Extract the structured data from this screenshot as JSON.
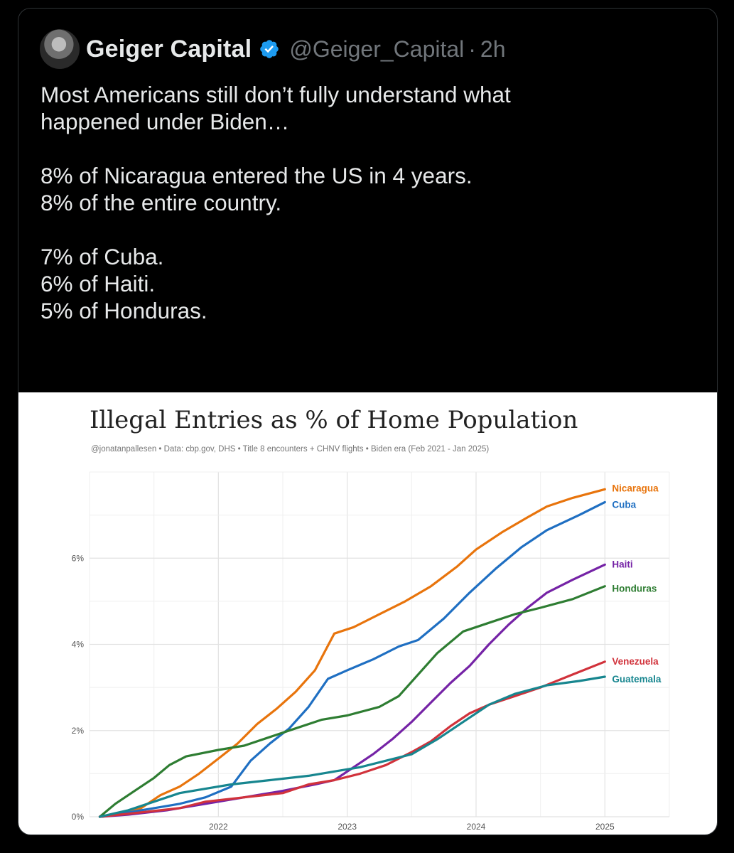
{
  "tweet": {
    "author_name": "Geiger Capital",
    "handle": "@Geiger_Capital",
    "separator": "·",
    "time": "2h",
    "verified_icon": "verified-badge-icon",
    "avatar_icon": "avatar-photo",
    "lines": [
      "Most Americans still don’t fully understand what",
      "happened under Biden…",
      "",
      "8% of Nicaragua entered the US in 4 years.",
      "8% of the entire country.",
      "",
      "7% of Cuba.",
      "6% of Haiti.",
      "5% of Honduras."
    ]
  },
  "chart_data": {
    "type": "line",
    "title": "Illegal Entries as % of Home Population",
    "subtitle": "@jonatanpallesen  •  Data: cbp.gov, DHS  •  Title 8 encounters + CHNV flights  •  Biden era (Feb 2021 - Jan 2025)",
    "xlabel": "",
    "ylabel": "",
    "xlim": [
      2021.0,
      2025.5
    ],
    "ylim": [
      0,
      8
    ],
    "x_ticks": [
      2022,
      2023,
      2024,
      2025
    ],
    "x_tick_labels": [
      "2022",
      "2023",
      "2024",
      "2025"
    ],
    "y_ticks": [
      0,
      2,
      4,
      6
    ],
    "y_tick_labels": [
      "0%",
      "2%",
      "4%",
      "6%"
    ],
    "grid": true,
    "legend": "end-of-line labels",
    "series": [
      {
        "name": "Nicaragua",
        "color": "#e8740c",
        "points": [
          [
            2021.08,
            0.0
          ],
          [
            2021.25,
            0.05
          ],
          [
            2021.4,
            0.2
          ],
          [
            2021.55,
            0.5
          ],
          [
            2021.7,
            0.7
          ],
          [
            2021.85,
            1.0
          ],
          [
            2022.0,
            1.35
          ],
          [
            2022.15,
            1.7
          ],
          [
            2022.3,
            2.15
          ],
          [
            2022.45,
            2.5
          ],
          [
            2022.6,
            2.9
          ],
          [
            2022.75,
            3.4
          ],
          [
            2022.9,
            4.25
          ],
          [
            2023.05,
            4.4
          ],
          [
            2023.25,
            4.7
          ],
          [
            2023.45,
            5.0
          ],
          [
            2023.65,
            5.35
          ],
          [
            2023.85,
            5.8
          ],
          [
            2024.0,
            6.2
          ],
          [
            2024.2,
            6.6
          ],
          [
            2024.4,
            6.95
          ],
          [
            2024.55,
            7.2
          ],
          [
            2024.75,
            7.4
          ],
          [
            2025.0,
            7.6
          ]
        ]
      },
      {
        "name": "Cuba",
        "color": "#1f6fc2",
        "points": [
          [
            2021.08,
            0.0
          ],
          [
            2021.3,
            0.1
          ],
          [
            2021.5,
            0.2
          ],
          [
            2021.7,
            0.3
          ],
          [
            2021.9,
            0.45
          ],
          [
            2022.1,
            0.7
          ],
          [
            2022.25,
            1.3
          ],
          [
            2022.4,
            1.7
          ],
          [
            2022.55,
            2.05
          ],
          [
            2022.7,
            2.55
          ],
          [
            2022.85,
            3.2
          ],
          [
            2023.0,
            3.4
          ],
          [
            2023.2,
            3.65
          ],
          [
            2023.4,
            3.95
          ],
          [
            2023.55,
            4.1
          ],
          [
            2023.75,
            4.6
          ],
          [
            2023.95,
            5.2
          ],
          [
            2024.15,
            5.75
          ],
          [
            2024.35,
            6.25
          ],
          [
            2024.55,
            6.65
          ],
          [
            2024.8,
            7.0
          ],
          [
            2025.0,
            7.3
          ]
        ]
      },
      {
        "name": "Haiti",
        "color": "#7523a6",
        "points": [
          [
            2021.08,
            0.0
          ],
          [
            2021.3,
            0.05
          ],
          [
            2021.6,
            0.15
          ],
          [
            2021.9,
            0.3
          ],
          [
            2022.2,
            0.45
          ],
          [
            2022.5,
            0.6
          ],
          [
            2022.75,
            0.75
          ],
          [
            2022.9,
            0.85
          ],
          [
            2023.05,
            1.15
          ],
          [
            2023.2,
            1.45
          ],
          [
            2023.35,
            1.8
          ],
          [
            2023.5,
            2.2
          ],
          [
            2023.65,
            2.65
          ],
          [
            2023.8,
            3.1
          ],
          [
            2023.95,
            3.5
          ],
          [
            2024.1,
            4.0
          ],
          [
            2024.25,
            4.45
          ],
          [
            2024.4,
            4.85
          ],
          [
            2024.55,
            5.2
          ],
          [
            2024.75,
            5.5
          ],
          [
            2025.0,
            5.85
          ]
        ]
      },
      {
        "name": "Honduras",
        "color": "#2e7d32",
        "points": [
          [
            2021.08,
            0.0
          ],
          [
            2021.2,
            0.3
          ],
          [
            2021.35,
            0.6
          ],
          [
            2021.5,
            0.9
          ],
          [
            2021.62,
            1.2
          ],
          [
            2021.75,
            1.4
          ],
          [
            2022.0,
            1.55
          ],
          [
            2022.2,
            1.65
          ],
          [
            2022.4,
            1.85
          ],
          [
            2022.6,
            2.05
          ],
          [
            2022.8,
            2.25
          ],
          [
            2023.0,
            2.35
          ],
          [
            2023.25,
            2.55
          ],
          [
            2023.4,
            2.8
          ],
          [
            2023.55,
            3.3
          ],
          [
            2023.7,
            3.8
          ],
          [
            2023.9,
            4.3
          ],
          [
            2024.1,
            4.5
          ],
          [
            2024.3,
            4.7
          ],
          [
            2024.5,
            4.85
          ],
          [
            2024.75,
            5.05
          ],
          [
            2025.0,
            5.35
          ]
        ]
      },
      {
        "name": "Venezuela",
        "color": "#d1323b",
        "points": [
          [
            2021.08,
            0.0
          ],
          [
            2021.4,
            0.1
          ],
          [
            2021.7,
            0.2
          ],
          [
            2021.9,
            0.35
          ],
          [
            2022.2,
            0.45
          ],
          [
            2022.5,
            0.55
          ],
          [
            2022.7,
            0.75
          ],
          [
            2022.9,
            0.85
          ],
          [
            2023.1,
            1.0
          ],
          [
            2023.3,
            1.2
          ],
          [
            2023.5,
            1.5
          ],
          [
            2023.65,
            1.75
          ],
          [
            2023.8,
            2.1
          ],
          [
            2023.95,
            2.4
          ],
          [
            2024.1,
            2.6
          ],
          [
            2024.3,
            2.8
          ],
          [
            2024.5,
            3.0
          ],
          [
            2024.75,
            3.3
          ],
          [
            2025.0,
            3.6
          ]
        ]
      },
      {
        "name": "Guatemala",
        "color": "#17868f",
        "points": [
          [
            2021.08,
            0.0
          ],
          [
            2021.3,
            0.15
          ],
          [
            2021.5,
            0.35
          ],
          [
            2021.7,
            0.55
          ],
          [
            2021.9,
            0.65
          ],
          [
            2022.1,
            0.75
          ],
          [
            2022.4,
            0.85
          ],
          [
            2022.7,
            0.95
          ],
          [
            2022.9,
            1.05
          ],
          [
            2023.1,
            1.15
          ],
          [
            2023.3,
            1.3
          ],
          [
            2023.5,
            1.45
          ],
          [
            2023.7,
            1.8
          ],
          [
            2023.9,
            2.2
          ],
          [
            2024.1,
            2.6
          ],
          [
            2024.3,
            2.85
          ],
          [
            2024.55,
            3.05
          ],
          [
            2024.8,
            3.15
          ],
          [
            2025.0,
            3.25
          ]
        ]
      }
    ]
  }
}
